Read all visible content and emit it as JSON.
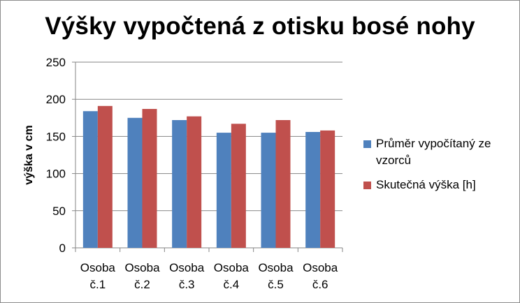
{
  "chart_data": {
    "type": "bar",
    "title": "Výšky vypočtená z otisku bosé nohy",
    "xlabel": "",
    "ylabel": "výška v cm",
    "ylim": [
      0,
      250
    ],
    "yticks": [
      0,
      50,
      100,
      150,
      200,
      250
    ],
    "grid": true,
    "legend_position": "right",
    "categories": [
      [
        "Osoba",
        "č.1"
      ],
      [
        "Osoba",
        "č.2"
      ],
      [
        "Osoba",
        "č.3"
      ],
      [
        "Osoba",
        "č.4"
      ],
      [
        "Osoba",
        "č.5"
      ],
      [
        "Osoba",
        "č.6"
      ]
    ],
    "series": [
      {
        "name": "Průměr vypočítaný ze vzorců",
        "color": "#4f81bd",
        "values": [
          184,
          175,
          172,
          155,
          155,
          156
        ]
      },
      {
        "name": "Skutečná výška [h]",
        "color": "#c0504d",
        "values": [
          191,
          187,
          177,
          167,
          172,
          158
        ]
      }
    ]
  }
}
